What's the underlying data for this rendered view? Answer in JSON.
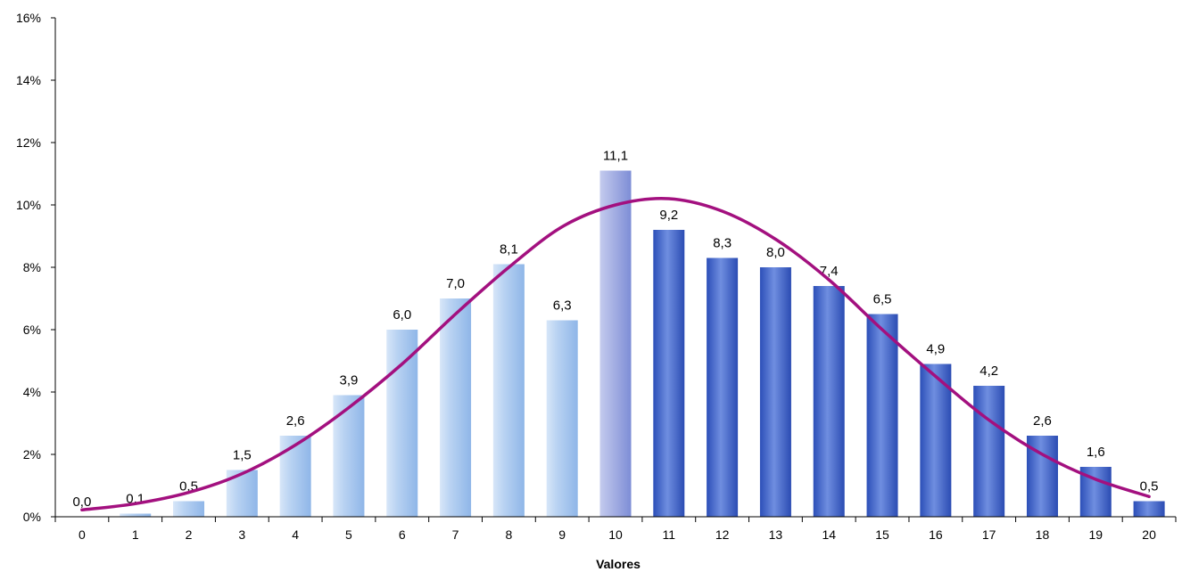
{
  "chart_data": {
    "type": "bar",
    "title": "",
    "xlabel": "Valores",
    "ylabel": "",
    "ylim": [
      0,
      16
    ],
    "yticks": [
      "0%",
      "2%",
      "4%",
      "6%",
      "8%",
      "10%",
      "12%",
      "14%",
      "16%"
    ],
    "categories": [
      "0",
      "1",
      "2",
      "3",
      "4",
      "5",
      "6",
      "7",
      "8",
      "9",
      "10",
      "11",
      "12",
      "13",
      "14",
      "15",
      "16",
      "17",
      "18",
      "19",
      "20"
    ],
    "values": [
      0.0,
      0.1,
      0.5,
      1.5,
      2.6,
      3.9,
      6.0,
      7.0,
      8.1,
      6.3,
      11.1,
      9.2,
      8.3,
      8.0,
      7.4,
      6.5,
      4.9,
      4.2,
      2.6,
      1.6,
      0.5
    ],
    "data_labels": [
      "0,0",
      "0,1",
      "0,5",
      "1,5",
      "2,6",
      "3,9",
      "6,0",
      "7,0",
      "8,1",
      "6,3",
      "11,1",
      "9,2",
      "8,3",
      "8,0",
      "7,4",
      "6,5",
      "4,9",
      "4,2",
      "2,6",
      "1,6",
      "0,5"
    ],
    "curve": {
      "type": "line",
      "x": [
        0,
        1,
        2,
        3,
        4,
        5,
        6,
        7,
        8,
        9,
        10,
        11,
        12,
        13,
        14,
        15,
        16,
        17,
        18,
        19,
        20
      ],
      "values": [
        0.22,
        0.42,
        0.78,
        1.38,
        2.3,
        3.5,
        4.9,
        6.5,
        8.0,
        9.3,
        10.0,
        10.2,
        9.8,
        8.9,
        7.6,
        6.0,
        4.5,
        3.1,
        2.0,
        1.2,
        0.65
      ]
    },
    "colors": {
      "bar_light": "#aac8ef",
      "bar_mid": "#9aa6de",
      "bar_dark": "#3f63c9",
      "curve": "#a3107f",
      "axis": "#000000"
    },
    "grid": false,
    "legend": "none"
  }
}
